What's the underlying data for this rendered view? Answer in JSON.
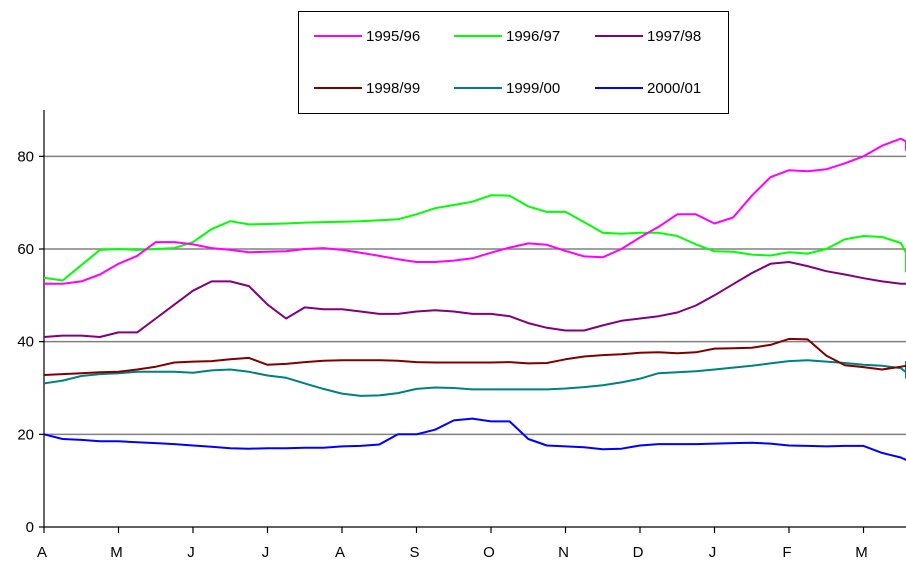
{
  "chart_data": {
    "type": "line",
    "title": "",
    "xlabel": "",
    "ylabel": "",
    "ylim": [
      0,
      90
    ],
    "yticks": [
      0,
      20,
      40,
      60,
      80
    ],
    "grid": true,
    "legend_position": "top",
    "month_labels": [
      "A",
      "M",
      "J",
      "J",
      "A",
      "S",
      "O",
      "N",
      "D",
      "J",
      "F",
      "M"
    ],
    "points_per_month": 4,
    "series": [
      {
        "name": "1995/96",
        "color": "#ff00ff",
        "values": [
          52.5,
          52.5,
          53,
          54.5,
          56.8,
          58.5,
          61.5,
          61.5,
          61,
          60.2,
          59.8,
          59.3,
          59.4,
          59.5,
          60,
          60.2,
          59.8,
          59.2,
          58.5,
          57.8,
          57.2,
          57.2,
          57.5,
          58,
          59.2,
          60.3,
          61.2,
          60.9,
          59.6,
          58.4,
          58.2,
          60,
          62.5,
          64.8,
          67.5,
          67.5,
          65.5,
          66.8,
          71.5,
          75.5,
          77,
          76.8,
          77.2,
          78.5,
          80,
          82.3,
          83.8,
          83.2,
          81.2
        ]
      },
      {
        "name": "1996/97",
        "color": "#00ff00",
        "values": [
          53.8,
          53.2,
          56.5,
          59.8,
          60,
          59.8,
          60,
          60.2,
          61.5,
          64.3,
          66,
          65.3,
          65.4,
          65.5,
          65.7,
          65.8,
          65.9,
          66,
          66.2,
          66.4,
          67.5,
          68.8,
          69.5,
          70.2,
          71.6,
          71.5,
          69.2,
          68,
          68,
          65.8,
          63.5,
          63.3,
          63.5,
          63.5,
          62.8,
          61,
          59.5,
          59.4,
          58.8,
          58.6,
          59.3,
          59,
          60,
          62.1,
          62.8,
          62.6,
          61.3,
          59.2,
          55
        ]
      },
      {
        "name": "1997/98",
        "color": "#800080",
        "values": [
          41,
          41.3,
          41.3,
          41,
          42,
          42,
          45,
          48,
          51,
          53,
          53,
          52,
          48,
          45,
          47.4,
          47,
          47,
          46.5,
          46,
          46,
          46.5,
          46.8,
          46.5,
          46,
          46,
          45.5,
          44,
          43,
          42.4,
          42.4,
          43.5,
          44.5,
          45,
          45.5,
          46.3,
          47.8,
          50,
          52.4,
          54.8,
          56.8,
          57.2,
          56.3,
          55.2,
          54.5,
          53.7,
          53,
          52.5,
          52.5,
          52.5
        ]
      },
      {
        "name": "1998/99",
        "color": "#800000",
        "values": [
          32.8,
          33,
          33.2,
          33.4,
          33.5,
          34,
          34.6,
          35.5,
          35.7,
          35.8,
          36.2,
          36.5,
          35,
          35.2,
          35.6,
          35.9,
          36,
          36,
          36,
          35.9,
          35.6,
          35.5,
          35.5,
          35.5,
          35.5,
          35.6,
          35.3,
          35.4,
          36.2,
          36.8,
          37.1,
          37.3,
          37.6,
          37.7,
          37.5,
          37.7,
          38.5,
          38.6,
          38.7,
          39.3,
          40.6,
          40.5,
          37,
          34.9,
          34.5,
          34,
          34.6,
          34.8,
          34.5
        ]
      },
      {
        "name": "1999/00",
        "color": "#008080",
        "values": [
          31,
          31.6,
          32.6,
          33,
          33.2,
          33.5,
          33.5,
          33.5,
          33.3,
          33.8,
          34,
          33.5,
          32.7,
          32.2,
          31,
          29.8,
          28.8,
          28.3,
          28.4,
          28.9,
          29.8,
          30.1,
          30,
          29.7,
          29.7,
          29.7,
          29.7,
          29.7,
          29.9,
          30.2,
          30.6,
          31.2,
          32,
          33.2,
          33.4,
          33.6,
          34,
          34.4,
          34.8,
          35.3,
          35.8,
          36,
          35.7,
          35.4,
          35,
          34.8,
          34.3,
          33.4,
          32.2,
          32.7,
          35.8
        ]
      },
      {
        "name": "2000/01",
        "color": "#0000ff",
        "values": [
          20,
          19,
          18.8,
          18.5,
          18.5,
          18.3,
          18.1,
          17.9,
          17.6,
          17.3,
          17,
          16.9,
          17,
          17,
          17.1,
          17.1,
          17.4,
          17.5,
          17.8,
          20,
          20,
          21,
          23,
          23.4,
          22.8,
          22.8,
          19,
          17.6,
          17.4,
          17.2,
          16.8,
          16.9,
          17.6,
          17.9,
          17.9,
          17.9,
          18,
          18.1,
          18.2,
          18,
          17.6,
          17.5,
          17.4,
          17.5,
          17.5,
          16,
          15,
          14.5,
          14.3,
          14.3
        ]
      }
    ]
  }
}
